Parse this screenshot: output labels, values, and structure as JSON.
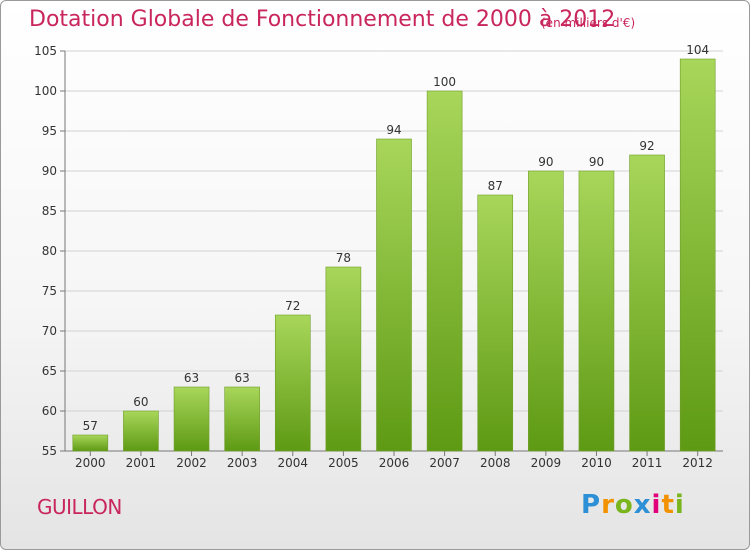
{
  "header": {
    "title": "Dotation Globale de Fonctionnement de 2000 à 2012",
    "subtitle": "(en milliers d'€)"
  },
  "footer": {
    "commune": "GUILLON",
    "brand": "Proxiti",
    "brand_letters": [
      {
        "ch": "P",
        "color": "#2d8fd6"
      },
      {
        "ch": "r",
        "color": "#f39200"
      },
      {
        "ch": "o",
        "color": "#7ab51d"
      },
      {
        "ch": "x",
        "color": "#2d8fd6"
      },
      {
        "ch": "i",
        "color": "#e2007a"
      },
      {
        "ch": "t",
        "color": "#f39200"
      },
      {
        "ch": "i",
        "color": "#7ab51d"
      }
    ]
  },
  "chart_data": {
    "type": "bar",
    "categories": [
      "2000",
      "2001",
      "2002",
      "2003",
      "2004",
      "2005",
      "2006",
      "2007",
      "2008",
      "2009",
      "2010",
      "2011",
      "2012"
    ],
    "values": [
      57,
      60,
      63,
      63,
      72,
      78,
      94,
      100,
      87,
      90,
      90,
      92,
      104
    ],
    "ylim": [
      55,
      105
    ],
    "yticks": [
      55,
      60,
      65,
      70,
      75,
      80,
      85,
      90,
      95,
      100,
      105
    ],
    "grid": true,
    "bar_color_light": "#a8d65a",
    "bar_color_dark": "#5e9a14",
    "title_color": "#c8265d"
  }
}
